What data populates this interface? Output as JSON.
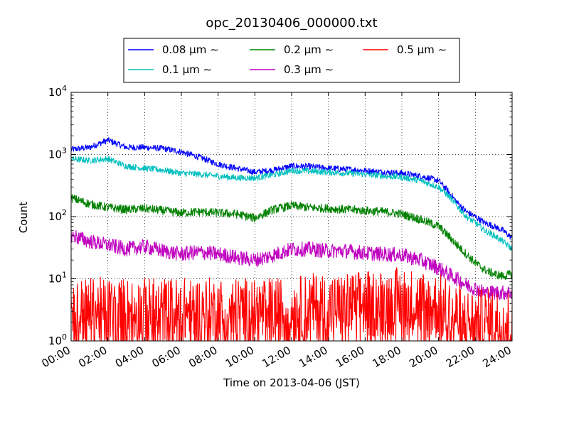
{
  "chart_data": {
    "type": "line",
    "title": "opc_20130406_000000.txt",
    "xlabel": "Time on 2013-04-06 (JST)",
    "ylabel": "Count",
    "yscale": "log",
    "ylim": [
      1,
      10000
    ],
    "xlim": [
      "00:00",
      "24:00"
    ],
    "grid": true,
    "legend_location": "top-center",
    "x_ticks": [
      "00:00",
      "02:00",
      "04:00",
      "06:00",
      "08:00",
      "10:00",
      "12:00",
      "14:00",
      "16:00",
      "18:00",
      "20:00",
      "22:00",
      "24:00"
    ],
    "y_ticks": [
      {
        "base": "10",
        "exp": "0",
        "value": 1
      },
      {
        "base": "10",
        "exp": "1",
        "value": 10
      },
      {
        "base": "10",
        "exp": "2",
        "value": 100
      },
      {
        "base": "10",
        "exp": "3",
        "value": 1000
      },
      {
        "base": "10",
        "exp": "4",
        "value": 10000
      }
    ],
    "x": [
      "00:00",
      "01:00",
      "02:00",
      "03:00",
      "04:00",
      "05:00",
      "06:00",
      "07:00",
      "08:00",
      "09:00",
      "10:00",
      "11:00",
      "12:00",
      "13:00",
      "14:00",
      "15:00",
      "16:00",
      "17:00",
      "18:00",
      "19:00",
      "20:00",
      "20:30",
      "21:00",
      "21:30",
      "22:00",
      "22:30",
      "23:00",
      "23:30",
      "24:00"
    ],
    "series": [
      {
        "name": "0.08 μm ∼",
        "color": "#0000ff",
        "values": [
          1200,
          1300,
          1700,
          1300,
          1300,
          1250,
          1100,
          900,
          700,
          600,
          520,
          560,
          650,
          640,
          600,
          580,
          550,
          520,
          500,
          450,
          380,
          260,
          170,
          120,
          100,
          80,
          70,
          60,
          45
        ]
      },
      {
        "name": "0.1 μm ∼",
        "color": "#00bfbf",
        "values": [
          850,
          800,
          850,
          650,
          600,
          560,
          500,
          480,
          450,
          420,
          420,
          470,
          550,
          540,
          520,
          500,
          480,
          450,
          430,
          380,
          300,
          220,
          150,
          100,
          80,
          60,
          50,
          40,
          30
        ]
      },
      {
        "name": "0.2 μm ∼",
        "color": "#008000",
        "values": [
          200,
          160,
          140,
          130,
          135,
          125,
          115,
          120,
          115,
          110,
          95,
          130,
          150,
          140,
          135,
          130,
          125,
          120,
          110,
          90,
          70,
          50,
          35,
          25,
          18,
          14,
          12,
          11,
          12
        ]
      },
      {
        "name": "0.3 μm ∼",
        "color": "#bf00bf",
        "values": [
          50,
          40,
          35,
          30,
          33,
          28,
          25,
          27,
          25,
          22,
          20,
          24,
          30,
          30,
          28,
          28,
          26,
          25,
          24,
          20,
          15,
          12,
          10,
          8,
          7,
          6,
          6,
          6,
          6
        ]
      },
      {
        "name": "0.5 μm ∼",
        "color": "#ff0000",
        "values": [
          3,
          3,
          3,
          3,
          3,
          3,
          3,
          3,
          3,
          3,
          3,
          3,
          3,
          3.5,
          3.5,
          3.5,
          4,
          4,
          4.5,
          4,
          3.5,
          3,
          2.5,
          2,
          2,
          2,
          2,
          2,
          2
        ]
      }
    ]
  }
}
